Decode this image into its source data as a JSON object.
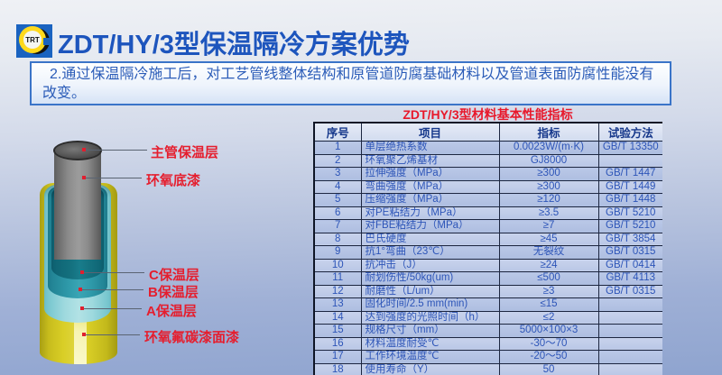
{
  "logo": {
    "text": "TRT"
  },
  "header": {
    "title": "ZDT/HY/3型保温隔冷方案优势"
  },
  "notice": {
    "text": "2.通过保温隔冷施工后，对工艺管线整体结构和原管道防腐基础材料以及管道表面防腐性能没有改变。"
  },
  "diagram": {
    "labels": [
      {
        "text": "主管保温层"
      },
      {
        "text": "环氧底漆"
      },
      {
        "text": "C保温层"
      },
      {
        "text": "B保温层"
      },
      {
        "text": "A保温层"
      },
      {
        "text": "环氧氟碳漆面漆"
      }
    ]
  },
  "table": {
    "title": "ZDT/HY/3型材料基本性能指标",
    "headers": [
      "序号",
      "项目",
      "指标",
      "试验方法"
    ],
    "rows": [
      [
        "1",
        "单层绝热系数",
        "0.0023W/(m·K)",
        "GB/T 13350"
      ],
      [
        "2",
        "环氧聚乙烯基材",
        "GJ8000",
        ""
      ],
      [
        "3",
        "拉伸强度（MPa）",
        "≥300",
        "GB/T 1447"
      ],
      [
        "4",
        "弯曲强度（MPa）",
        "≥300",
        "GB/T 1449"
      ],
      [
        "5",
        "压缩强度（MPa）",
        "≥120",
        "GB/T 1448"
      ],
      [
        "6",
        "对PE粘结力（MPa）",
        "≥3.5",
        "GB/T 5210"
      ],
      [
        "7",
        "对FBE粘结力（MPa）",
        "≥7",
        "GB/T 5210"
      ],
      [
        "8",
        "巴氏硬度",
        "≥45",
        "GB/T 3854"
      ],
      [
        "9",
        "抗1°弯曲（23℃）",
        "无裂纹",
        "GB/T 0315"
      ],
      [
        "10",
        "抗冲击（J）",
        "≥24",
        "GB/T 0414"
      ],
      [
        "11",
        "耐划伤性/50kg(um)",
        "≤500",
        "GB/T 4113"
      ],
      [
        "12",
        "耐磨性（L/um）",
        "≥3",
        "GB/T 0315"
      ],
      [
        "13",
        "固化时间/2.5 mm(min)",
        "≤15",
        ""
      ],
      [
        "14",
        "达到强度的光照时间（h）",
        "≤2",
        ""
      ],
      [
        "15",
        "规格尺寸（mm）",
        "5000×100×3",
        ""
      ],
      [
        "16",
        "材料温度耐受℃",
        "-30～70",
        ""
      ],
      [
        "17",
        "工作环境温度℃",
        "-20～50",
        ""
      ],
      [
        "18",
        "使用寿命（Y）",
        "50",
        ""
      ]
    ]
  },
  "colors": {
    "title_blue": "#1d55bd",
    "notice_border": "#3a74c8",
    "label_red": "#e51e2e",
    "table_text": "#2d55b8",
    "pipe_yellow": "#d9ce26",
    "teal_dark": "#14717f",
    "teal_mid": "#2f9aaa",
    "teal_light": "#9ed9de",
    "pipe_gray": "#8b8b8b"
  }
}
